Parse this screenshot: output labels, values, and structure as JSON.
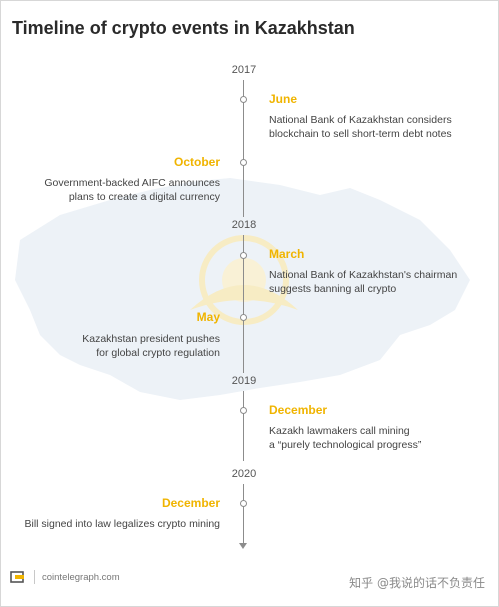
{
  "title": "Timeline of crypto events in Kazakhstan",
  "years": [
    "2017",
    "2018",
    "2019",
    "2020"
  ],
  "events": [
    {
      "month": "June",
      "lines": [
        "National Bank of Kazakhstan considers",
        "blockchain to sell short-term debt notes"
      ]
    },
    {
      "month": "October",
      "lines": [
        "Government-backed AIFC announces",
        "plans to create a digital currency"
      ]
    },
    {
      "month": "March",
      "lines": [
        "National Bank of Kazakhstan's chairman",
        "suggests banning all crypto"
      ]
    },
    {
      "month": "May",
      "lines": [
        "Kazakhstan president pushes",
        "for global crypto regulation"
      ]
    },
    {
      "month": "December",
      "lines": [
        "Kazakh lawmakers call mining",
        "a “purely technological progress”"
      ]
    },
    {
      "month": "December",
      "lines": [
        "Bill signed into law legalizes crypto mining"
      ]
    }
  ],
  "footer": {
    "source": "cointelegraph.com",
    "watermark": "知乎 @我说的话不负责任"
  },
  "colors": {
    "accent": "#f0b400",
    "axis": "#8c8c8c",
    "map": "#eaf0f5"
  }
}
